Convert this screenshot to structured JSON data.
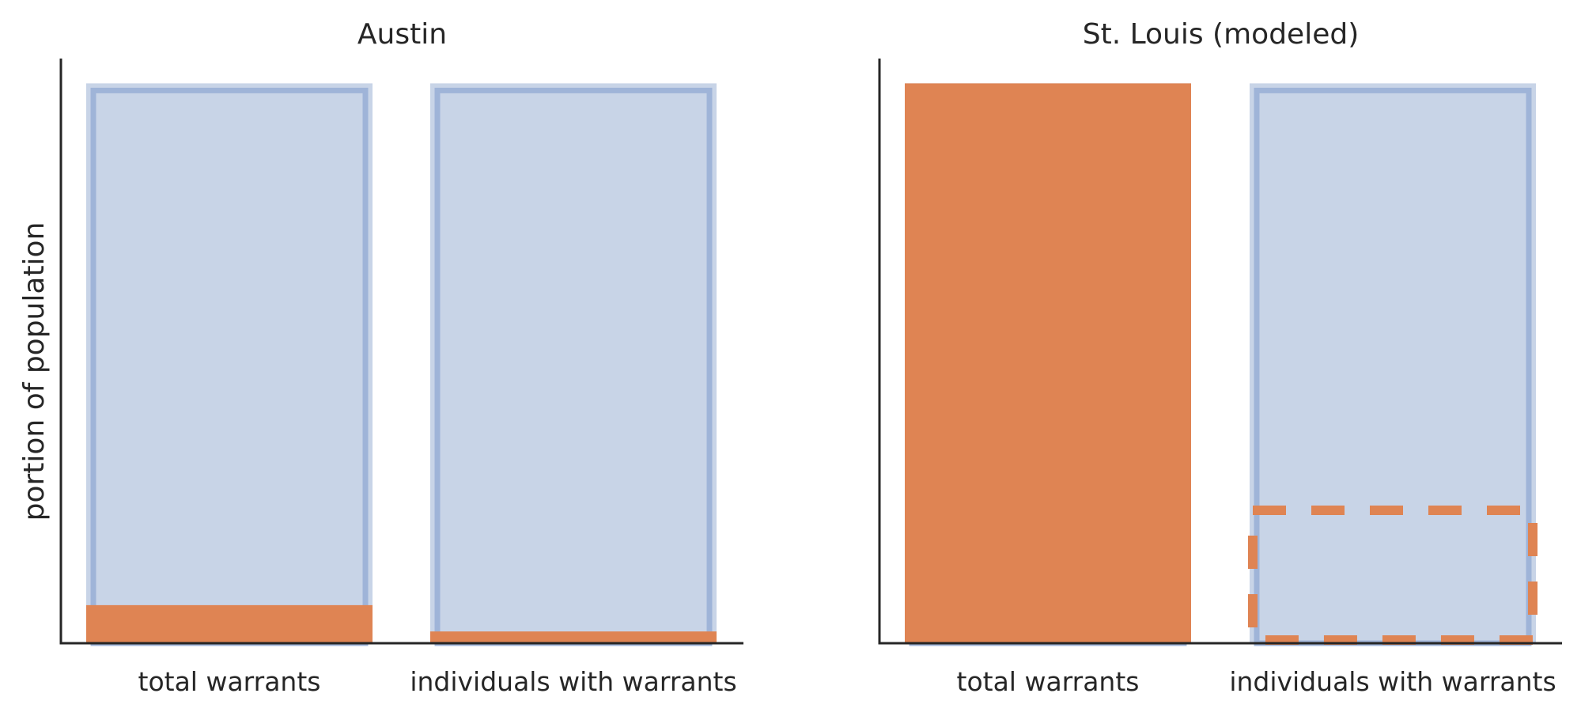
{
  "colors": {
    "population_fill": "#c8d4e7",
    "population_edge": "#9fb4d8",
    "warrant": "#df8453",
    "axis": "#262626"
  },
  "chart_data": [
    {
      "type": "bar",
      "title": "Austin",
      "ylabel": "portion of population",
      "xlabel": "",
      "categories": [
        "total warrants",
        "individuals with warrants"
      ],
      "series": [
        {
          "role": "population",
          "values": [
            1.0,
            1.0
          ]
        },
        {
          "role": "warrants",
          "style": "solid",
          "values": [
            0.068,
            0.021
          ]
        }
      ],
      "ylim": [
        0,
        1.05
      ],
      "grid": false
    },
    {
      "type": "bar",
      "title": "St. Louis (modeled)",
      "xlabel": "",
      "categories": [
        "total warrants",
        "individuals with warrants"
      ],
      "series": [
        {
          "role": "population",
          "values": [
            1.0,
            1.0
          ]
        },
        {
          "role": "warrants",
          "style": [
            "solid",
            "dashed-outline"
          ],
          "values": [
            1.0,
            0.243
          ]
        }
      ],
      "ylim": [
        0,
        1.05
      ],
      "grid": false
    }
  ]
}
